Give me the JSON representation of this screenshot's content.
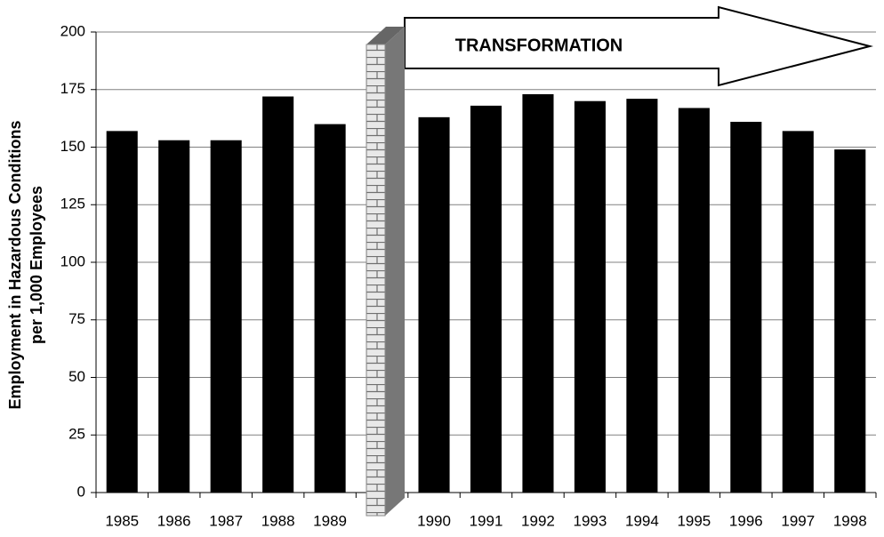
{
  "chart_data": {
    "type": "bar",
    "ylabel": [
      "Employment in Hazardous Conditions",
      "per 1,000 Employees"
    ],
    "annotation": "TRANSFORMATION",
    "categories": [
      "1985",
      "1986",
      "1987",
      "1988",
      "1989",
      null,
      "1990",
      "1991",
      "1992",
      "1993",
      "1994",
      "1995",
      "1996",
      "1997",
      "1998"
    ],
    "values": [
      157,
      153,
      153,
      172,
      160,
      null,
      163,
      168,
      173,
      170,
      171,
      167,
      161,
      157,
      149
    ],
    "color": "#000000",
    "ylim": [
      0,
      200
    ],
    "yticks": [
      0,
      25,
      50,
      75,
      100,
      125,
      150,
      175,
      200
    ],
    "grid": true
  }
}
